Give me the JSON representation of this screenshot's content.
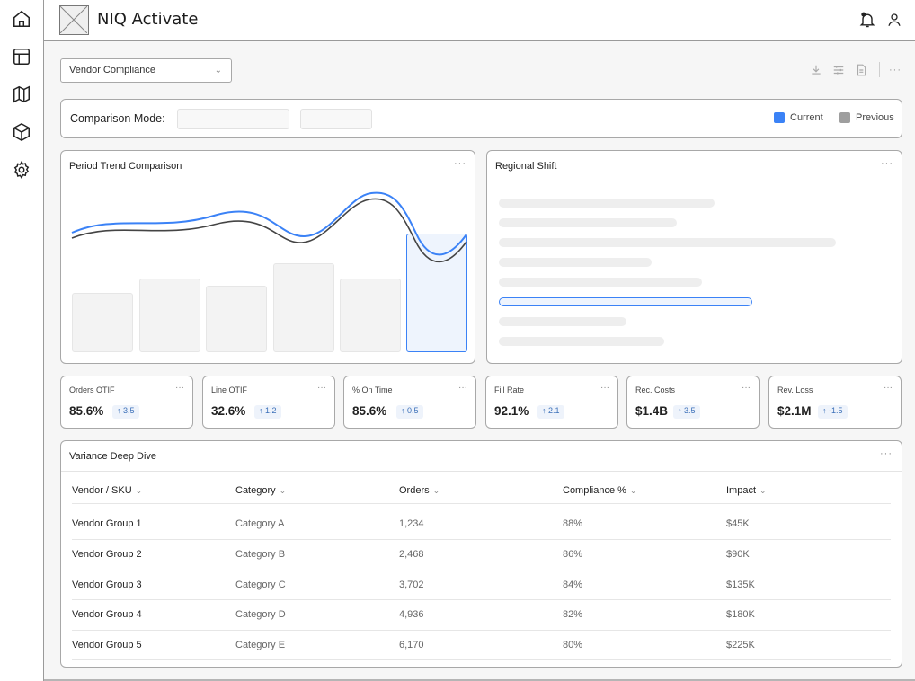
{
  "app": {
    "title": "NIQ Activate"
  },
  "sidebar": {
    "items": [
      {
        "icon": "home-icon"
      },
      {
        "icon": "layout-icon"
      },
      {
        "icon": "map-icon"
      },
      {
        "icon": "box-icon"
      },
      {
        "icon": "settings-icon"
      }
    ]
  },
  "header": {
    "icons": [
      "notification-bell-icon",
      "user-icon"
    ]
  },
  "toolbar": {
    "dropdown_value": "Vendor Compliance",
    "icons": [
      "download-icon",
      "filter-sliders-icon",
      "document-icon",
      "more-icon"
    ]
  },
  "comparison": {
    "label": "Comparison Mode:",
    "legend": [
      {
        "label": "Current",
        "color": "#3b82f6"
      },
      {
        "label": "Previous",
        "color": "#9e9e9e"
      }
    ]
  },
  "panels": {
    "trend": {
      "title": "Period Trend Comparison",
      "more": "···"
    },
    "regional": {
      "title": "Regional Shift",
      "more": "···"
    }
  },
  "kpis": [
    {
      "label": "Orders OTIF",
      "value": "85.6%",
      "delta": "↑ 3.5",
      "more": "···"
    },
    {
      "label": "Line OTIF",
      "value": "32.6%",
      "delta": "↑ 1.2",
      "more": "···"
    },
    {
      "label": "% On Time",
      "value": "85.6%",
      "delta": "↑ 0.5",
      "more": "···"
    },
    {
      "label": "Fill Rate",
      "value": "92.1%",
      "delta": "↑ 2.1",
      "more": "···"
    },
    {
      "label": "Rec. Costs",
      "value": "$1.4B",
      "delta": "↑ 3.5",
      "more": "···"
    },
    {
      "label": "Rev. Loss",
      "value": "$2.1M",
      "delta": "↑ -1.5",
      "more": "···"
    }
  ],
  "table": {
    "title": "Variance Deep Dive",
    "more": "···",
    "columns": [
      "Vendor / SKU",
      "Category",
      "Orders",
      "Compliance %",
      "Impact"
    ],
    "rows": [
      [
        "Vendor Group 1",
        "Category A",
        "1,234",
        "88%",
        "$45K"
      ],
      [
        "Vendor Group 2",
        "Category B",
        "2,468",
        "86%",
        "$90K"
      ],
      [
        "Vendor Group 3",
        "Category C",
        "3,702",
        "84%",
        "$135K"
      ],
      [
        "Vendor Group 4",
        "Category D",
        "4,936",
        "82%",
        "$180K"
      ],
      [
        "Vendor Group 5",
        "Category E",
        "6,170",
        "80%",
        "$225K"
      ]
    ]
  },
  "colors": {
    "accent": "#3b82f6",
    "accent_fill": "#eef4fd",
    "previous": "#444444"
  }
}
